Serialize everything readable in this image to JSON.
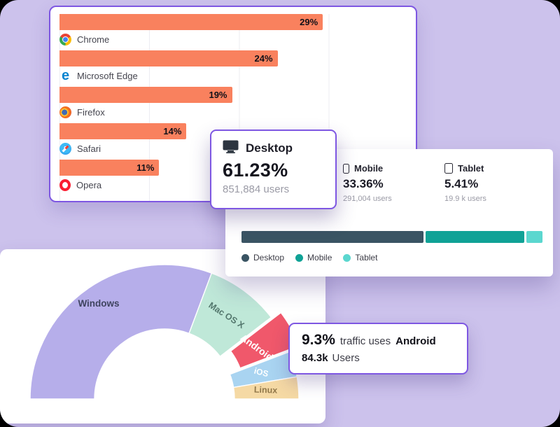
{
  "theme": {
    "canvas_background": "#ccc2ec",
    "outer_background": "#000000",
    "accent_border": "#7e57e2",
    "card_background": "#ffffff"
  },
  "chart_data": [
    {
      "type": "bar",
      "orientation": "horizontal",
      "categories": [
        "Chrome",
        "Microsoft Edge",
        "Firefox",
        "Safari",
        "Opera"
      ],
      "values": [
        29,
        24,
        19,
        14,
        11
      ],
      "value_labels": [
        "29%",
        "24%",
        "19%",
        "14%",
        "11%"
      ],
      "icons": [
        "chrome-icon",
        "edge-icon",
        "firefox-icon",
        "safari-icon",
        "opera-icon"
      ],
      "bar_color": "#f9815e",
      "xlim": [
        0,
        38
      ],
      "unit": "percent",
      "grid": "vertical-light"
    },
    {
      "type": "bar",
      "subtype": "stacked-single-row",
      "series": [
        {
          "name": "Desktop",
          "value": 61.23,
          "percent_label": "61.23%",
          "users": "851,884 users",
          "color": "#3a5463",
          "icon": "desktop-icon"
        },
        {
          "name": "Mobile",
          "value": 33.36,
          "percent_label": "33.36%",
          "users": "291,004 users",
          "color": "#10a296",
          "icon": "mobile-icon"
        },
        {
          "name": "Tablet",
          "value": 5.41,
          "percent_label": "5.41%",
          "users": "19.9 k users",
          "color": "#5bd7cf",
          "icon": "tablet-icon"
        }
      ],
      "legend": [
        "Desktop",
        "Mobile",
        "Tablet"
      ],
      "legend_position": "bottom",
      "unit": "percent"
    },
    {
      "type": "pie",
      "subtype": "half-donut",
      "slices": [
        {
          "name": "Windows",
          "value": 61.4,
          "color": "#b6aeea",
          "label_color": "#3f4460",
          "exploded": false
        },
        {
          "name": "Mac OS X",
          "value": 17.8,
          "color": "#bfe8d8",
          "label_color": "#53776d",
          "exploded": false
        },
        {
          "name": "Android",
          "value": 9.3,
          "color": "#f0586b",
          "label_color": "#ffffff",
          "exploded": true
        },
        {
          "name": "iOS",
          "value": 6.2,
          "color": "#a9d4f1",
          "label_color": "#ffffff",
          "exploded": false
        },
        {
          "name": "Linux",
          "value": 5.3,
          "color": "#f5d9a4",
          "label_color": "#91784a",
          "exploded": false
        }
      ],
      "unit": "percent"
    }
  ],
  "android_callout": {
    "percent": "9.3%",
    "middle_text": "traffic uses",
    "os_name": "Android",
    "users_value": "84.3k",
    "users_label": "Users"
  }
}
